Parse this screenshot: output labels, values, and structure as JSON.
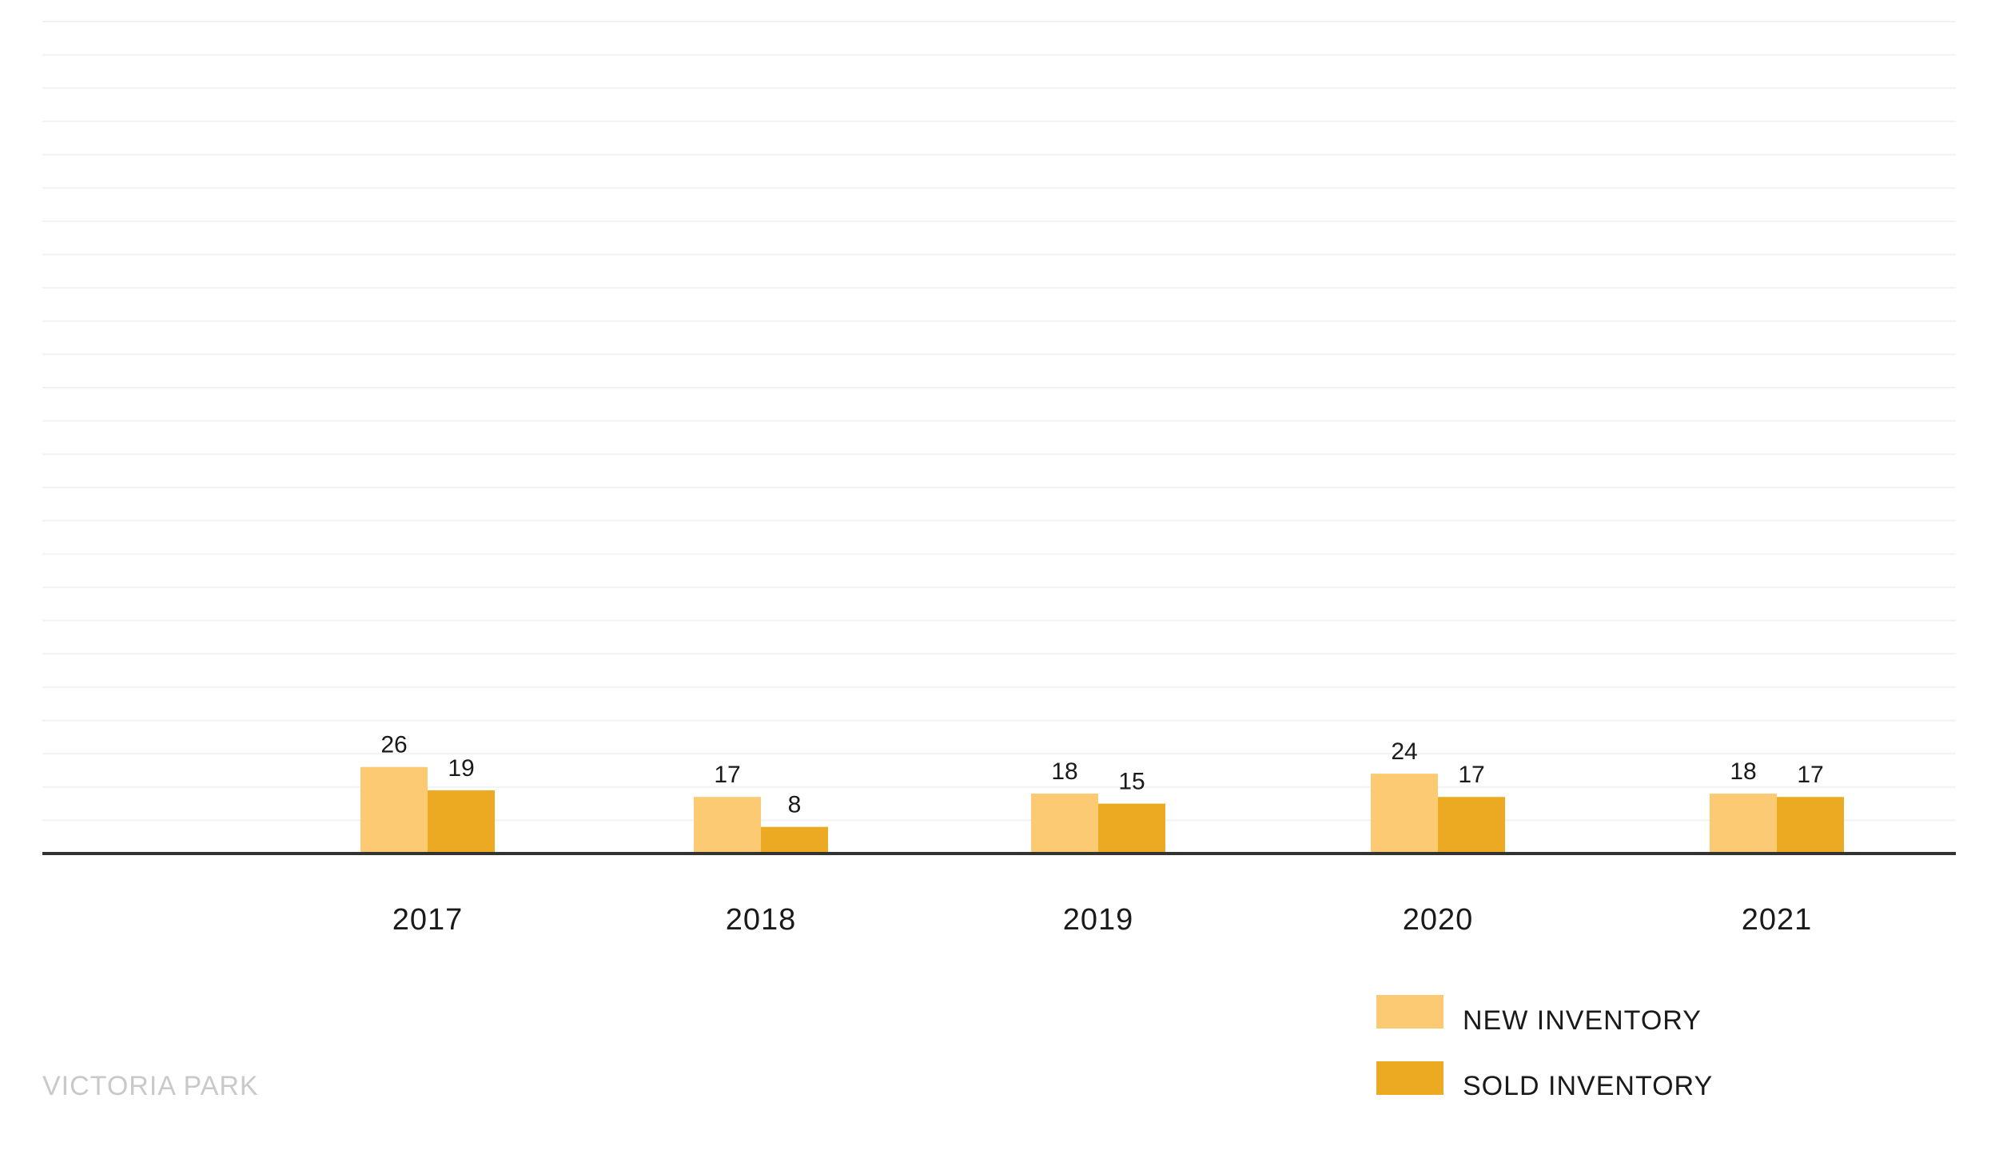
{
  "chart_data": {
    "type": "bar",
    "categories": [
      "2017",
      "2018",
      "2019",
      "2020",
      "2021"
    ],
    "series": [
      {
        "name": "NEW INVENTORY",
        "values": [
          26,
          17,
          18,
          24,
          18
        ],
        "color": "#fcca72"
      },
      {
        "name": "SOLD INVENTORY",
        "values": [
          19,
          8,
          15,
          17,
          17
        ],
        "color": "#ebaa22"
      }
    ],
    "title": "",
    "xlabel": "",
    "ylabel": "",
    "ylim": [
      0,
      250
    ],
    "grid": true,
    "legend_position": "bottom-right"
  },
  "footer": {
    "label": "VICTORIA PARK"
  },
  "colors": {
    "axis": "#333333",
    "grid": "#f2f2f2",
    "footer": "#c9c9c9"
  }
}
